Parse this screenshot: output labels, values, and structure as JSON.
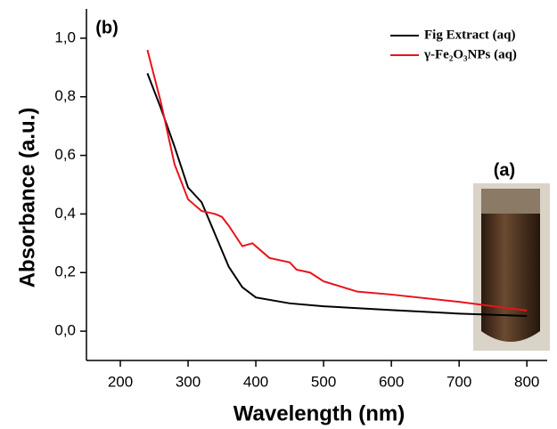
{
  "chart_data": {
    "type": "line",
    "x_label": "Wavelength (nm)",
    "y_label": "Absorbance (a.u.)",
    "annotations": [
      "(b)",
      "(a)"
    ],
    "xlim": [
      150,
      830
    ],
    "ylim": [
      -0.1,
      1.1
    ],
    "xticks": [
      200,
      300,
      400,
      500,
      600,
      700,
      800
    ],
    "yticks": [
      {
        "value": 0,
        "label": "0,0"
      },
      {
        "value": 0.2,
        "label": "0,2"
      },
      {
        "value": 0.4,
        "label": "0,4"
      },
      {
        "value": 0.6,
        "label": "0,6"
      },
      {
        "value": 0.8,
        "label": "0,8"
      },
      {
        "value": 1,
        "label": "1,0"
      }
    ],
    "legend": "upper right",
    "series": [
      {
        "name": "Fig Extract (aq)",
        "color": "#000000",
        "x": [
          240,
          260,
          280,
          300,
          320,
          340,
          360,
          380,
          400,
          450,
          500,
          600,
          700,
          800
        ],
        "values": [
          0.88,
          0.76,
          0.63,
          0.49,
          0.44,
          0.33,
          0.22,
          0.15,
          0.115,
          0.095,
          0.085,
          0.072,
          0.06,
          0.052
        ]
      },
      {
        "name": "γ-Fe₂O₃NPs (aq)",
        "color": "#e8131b",
        "x": [
          240,
          260,
          280,
          300,
          320,
          340,
          350,
          360,
          380,
          395,
          420,
          450,
          460,
          480,
          500,
          550,
          600,
          700,
          800
        ],
        "values": [
          0.96,
          0.78,
          0.57,
          0.45,
          0.41,
          0.4,
          0.39,
          0.36,
          0.29,
          0.3,
          0.25,
          0.235,
          0.21,
          0.2,
          0.17,
          0.135,
          0.125,
          0.1,
          0.07
        ]
      }
    ]
  }
}
